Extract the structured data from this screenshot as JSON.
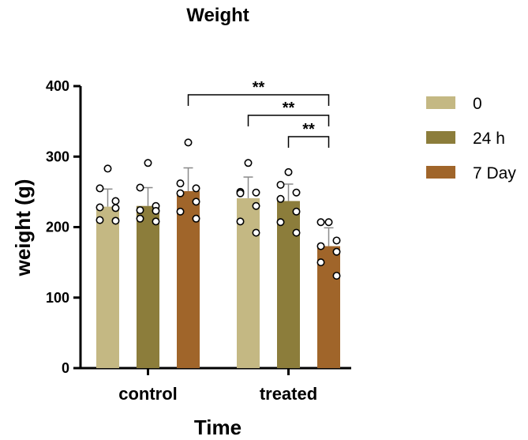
{
  "chart_data": {
    "type": "bar",
    "title": "Weight",
    "xlabel": "Time",
    "ylabel": "weight (g)",
    "ylim": [
      0,
      400
    ],
    "yticks": [
      0,
      100,
      200,
      300,
      400
    ],
    "ytick_labels": [
      "0",
      "100",
      "200",
      "300",
      "400"
    ],
    "categories": [
      "control",
      "treated"
    ],
    "series": [
      {
        "name": "0",
        "color": "#c4b883",
        "values": [
          229,
          241
        ],
        "errors": [
          25,
          30
        ],
        "points": [
          [
            283,
            255,
            237,
            228,
            227,
            210,
            209
          ],
          [
            291,
            250,
            249,
            248,
            230,
            208,
            192
          ]
        ]
      },
      {
        "name": "24 h",
        "color": "#8c7d3b",
        "values": [
          230,
          237
        ],
        "errors": [
          26,
          24
        ],
        "points": [
          [
            291,
            256,
            230,
            224,
            223,
            212,
            208
          ],
          [
            278,
            260,
            249,
            240,
            222,
            207,
            192
          ]
        ]
      },
      {
        "name": "7 Day",
        "color": "#a0652a",
        "values": [
          251,
          173
        ],
        "errors": [
          33,
          26
        ],
        "points": [
          [
            320,
            262,
            255,
            248,
            236,
            222,
            212
          ],
          [
            207,
            207,
            181,
            173,
            165,
            150,
            131
          ]
        ]
      }
    ],
    "significance": [
      {
        "from": "control / 7 Day",
        "to": "treated / 7 Day",
        "label": "**"
      },
      {
        "from": "treated / 0",
        "to": "treated / 7 Day",
        "label": "**"
      },
      {
        "from": "treated / 24 h",
        "to": "treated / 7 Day",
        "label": "**"
      }
    ],
    "legend_position": "right"
  }
}
